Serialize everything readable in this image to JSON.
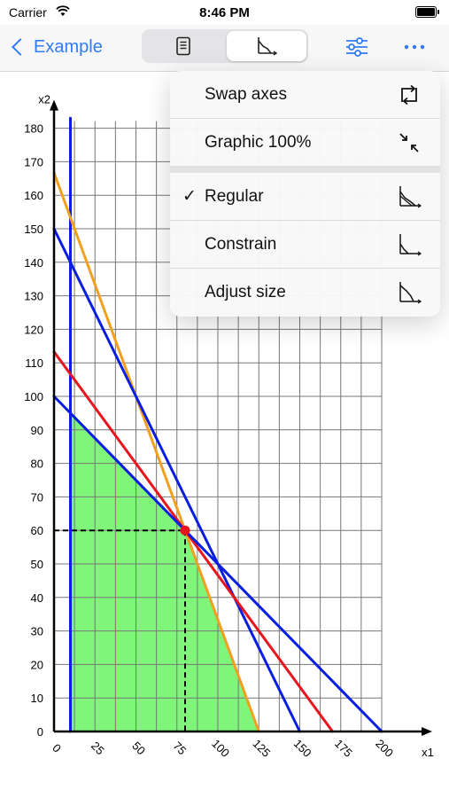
{
  "status_bar": {
    "carrier": "Carrier",
    "time": "8:46 PM"
  },
  "nav": {
    "back_label": "Example"
  },
  "menu": {
    "items": [
      {
        "label": "Swap axes",
        "icon": "swap-axes-icon",
        "checked": false
      },
      {
        "label": "Graphic 100%",
        "icon": "collapse-arrows-icon",
        "checked": false
      },
      {
        "label": "Regular",
        "icon": "graph-regular-icon",
        "checked": true
      },
      {
        "label": "Constrain",
        "icon": "graph-constrain-icon",
        "checked": false
      },
      {
        "label": "Adjust size",
        "icon": "graph-adjust-icon",
        "checked": false
      }
    ],
    "check_mark": "✓"
  },
  "chart_data": {
    "type": "line",
    "xlabel": "x1",
    "ylabel": "x2",
    "xlim": [
      0,
      200
    ],
    "ylim": [
      0,
      180
    ],
    "x_ticks": [
      0,
      25,
      50,
      75,
      100,
      125,
      150,
      175,
      200
    ],
    "y_ticks": [
      0,
      10,
      20,
      30,
      40,
      50,
      60,
      70,
      80,
      90,
      100,
      110,
      120,
      130,
      140,
      150,
      160,
      170,
      180
    ],
    "lines": [
      {
        "color": "#0a1ee0",
        "points": [
          [
            10,
            0
          ],
          [
            10,
            183
          ]
        ]
      },
      {
        "color": "#f0a01e",
        "points": [
          [
            0,
            166.7
          ],
          [
            125,
            0
          ]
        ]
      },
      {
        "color": "#0a1ee0",
        "points": [
          [
            0,
            150
          ],
          [
            150,
            0
          ]
        ]
      },
      {
        "color": "#e8141e",
        "points": [
          [
            0,
            113.3
          ],
          [
            170,
            0
          ]
        ]
      },
      {
        "color": "#0a1ee0",
        "points": [
          [
            0,
            100
          ],
          [
            200,
            0
          ]
        ]
      }
    ],
    "feasible_region": {
      "color": "#7ff57a",
      "points": [
        [
          10,
          0
        ],
        [
          10,
          95
        ],
        [
          80,
          60
        ],
        [
          125,
          0
        ]
      ]
    },
    "optimum": {
      "x": 80,
      "y": 60,
      "color": "#e8141e"
    }
  }
}
